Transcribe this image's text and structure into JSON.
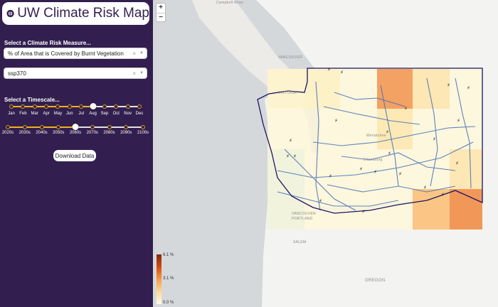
{
  "app": {
    "title": "UW Climate Risk Map"
  },
  "measure": {
    "label": "Select a Climate Risk Measure...",
    "selected": "% of Area that is Covered by Burnt Vegetation",
    "clear_symbol": "×",
    "arrow_symbol": "▼"
  },
  "scenario": {
    "selected": "ssp370",
    "clear_symbol": "×",
    "arrow_symbol": "▼"
  },
  "timescale": {
    "label": "Select a Timescale...",
    "months": [
      "Jan",
      "Feb",
      "Mar",
      "Apr",
      "May",
      "Jun",
      "Jul",
      "Aug",
      "Sep",
      "Oct",
      "Nov",
      "Dec"
    ],
    "selected_month": "Aug",
    "decades": [
      "2020s",
      "2030s",
      "2040s",
      "2050s",
      "2060s",
      "2070s",
      "2080s",
      "2090s",
      "2100s"
    ],
    "selected_decade": "2060s"
  },
  "download": {
    "label": "Download Data"
  },
  "zoom": {
    "in": "+",
    "out": "−"
  },
  "legend": {
    "max": "6.1 %",
    "mid": "3.1 %",
    "min": "0.0 %"
  },
  "map_labels": {
    "vancouver": "VANCOUVER",
    "victoria": "VICTORIA",
    "campbell_river": "Campbell River",
    "salem": "SALEM",
    "oregon": "OREGON",
    "portland": "PORTLAND",
    "vancouver_wa": "VANCOUVER",
    "ellensburg": "Ellensburg",
    "wenatchee": "Wenatchee"
  },
  "colors": {
    "sidebar": "#321f4f",
    "accent": "#f2b01e",
    "water": "#d4d8db",
    "land": "#f3f3f1",
    "border": "#1b1464",
    "roads": "#3f6fb8"
  },
  "icons": [
    "logo-globe-icon",
    "lightning-icon",
    "close-icon",
    "chevron-down-icon"
  ]
}
